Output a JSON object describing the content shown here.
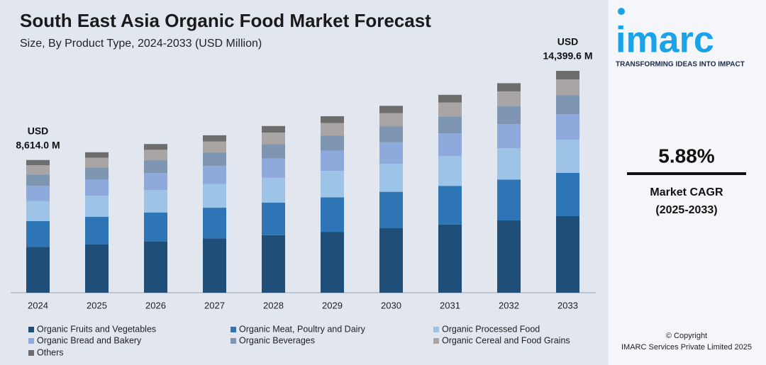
{
  "chart_data": {
    "type": "stacked-bar",
    "title": "South East Asia Organic Food Market Forecast",
    "subtitle": "Size, By Product Type, 2024-2033 (USD Million)",
    "categories": [
      "2024",
      "2025",
      "2026",
      "2027",
      "2028",
      "2029",
      "2030",
      "2031",
      "2032",
      "2033"
    ],
    "series": [
      {
        "name": "Organic Fruits and Vegetables",
        "color": "#1f4e79",
        "values": [
          2971.8,
          3145.0,
          3329.9,
          3525.6,
          3732.9,
          3952.7,
          4184.9,
          4431.2,
          4691.7,
          4967.9
        ]
      },
      {
        "name": "Organic Meat, Poultry and Dairy",
        "color": "#2e75b6",
        "values": [
          1679.7,
          1777.6,
          1882.1,
          1992.7,
          2109.9,
          2234.1,
          2365.4,
          2504.6,
          2651.8,
          2807.9
        ]
      },
      {
        "name": "Organic Processed Food",
        "color": "#9dc3e6",
        "values": [
          1292.1,
          1367.4,
          1447.8,
          1532.9,
          1623.0,
          1718.6,
          1819.5,
          1926.6,
          2039.9,
          2159.9
        ]
      },
      {
        "name": "Organic Bread and Bakery",
        "color": "#8ea9db",
        "values": [
          990.6,
          1048.3,
          1110.0,
          1175.2,
          1244.3,
          1317.6,
          1395.0,
          1477.1,
          1563.9,
          1656.0
        ]
      },
      {
        "name": "Organic Beverages",
        "color": "#7f96b2",
        "values": [
          740.8,
          784.0,
          830.1,
          878.8,
          930.5,
          985.3,
          1043.2,
          1104.6,
          1169.5,
          1238.4
        ]
      },
      {
        "name": "Organic Cereal and Food Grains",
        "color": "#aaa5a5",
        "values": [
          603.0,
          638.1,
          675.6,
          715.3,
          757.4,
          802.0,
          849.1,
          899.1,
          951.9,
          1008.0
        ]
      },
      {
        "name": "Others",
        "color": "#6d6d6d",
        "values": [
          335.9,
          355.5,
          376.4,
          398.5,
          422.0,
          446.8,
          473.1,
          500.9,
          530.4,
          561.6
        ]
      }
    ],
    "annotations": [
      {
        "category": "2024",
        "prefix": "USD",
        "value": 8614.0,
        "label": "8,614.0 M"
      },
      {
        "category": "2033",
        "prefix": "USD",
        "value": 14399.6,
        "label": "14,399.6 M"
      }
    ],
    "legend": "bottom"
  },
  "sidebar": {
    "logo": "imarc",
    "tagline": "TRANSFORMING IDEAS INTO IMPACT",
    "cagr": "5.88%",
    "cagr_label": "Market CAGR",
    "cagr_period": "(2025-2033)",
    "copyright": "© Copyright",
    "company": "IMARC Services Private Limited 2025"
  }
}
